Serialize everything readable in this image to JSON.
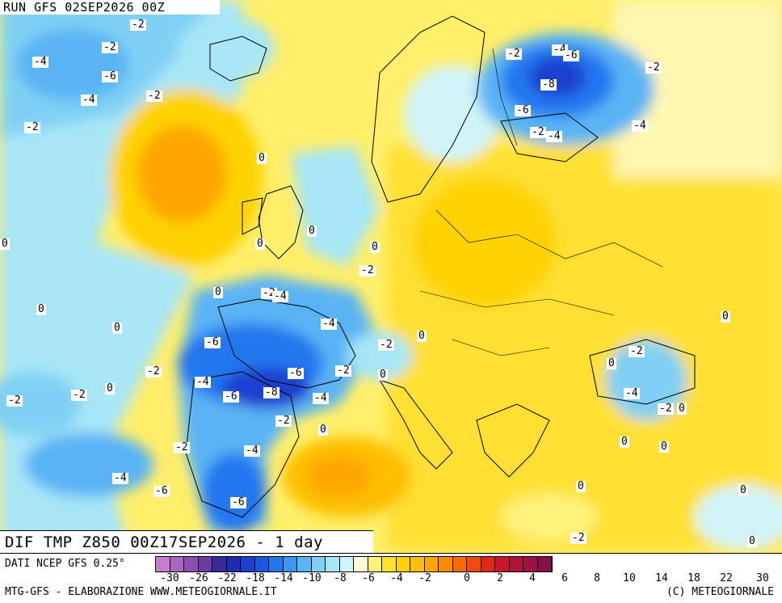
{
  "run_title": "RUN GFS 02SEP2026 00Z",
  "field_title": "DIF TMP Z850 00Z17SEP2026 - 1 day",
  "footer": {
    "source": "DATI NCEP GFS 0.25°",
    "credit_left": "MTG-GFS - ELABORAZIONE WWW.METEOGIORNALE.IT",
    "credit_right": "(C) METEOGIORNALE"
  },
  "legend": {
    "colors": [
      "#c87ed0",
      "#a866c0",
      "#8e4eb0",
      "#6c3aa0",
      "#3a2a98",
      "#1f2bb0",
      "#1c3fcf",
      "#1a5ae0",
      "#2277ef",
      "#3a96f2",
      "#5ab4f4",
      "#7fd0f4",
      "#a6e6f6",
      "#d0f4f8",
      "#fffbd0",
      "#fff27a",
      "#ffe42a",
      "#ffd200",
      "#ffbf00",
      "#ffa500",
      "#ff8c00",
      "#ff6a00",
      "#f24a10",
      "#dd2a1c",
      "#c81828",
      "#b01436",
      "#9c1242",
      "#86104e"
    ],
    "ticks": [
      "-30",
      "-26",
      "-22",
      "-18",
      "-14",
      "-10",
      "-8",
      "-6",
      "-4",
      "-2",
      "0",
      "2",
      "4",
      "6",
      "8",
      "10",
      "14",
      "18",
      "22",
      "30"
    ]
  },
  "map_labels": [
    {
      "text": "-2"
    },
    {
      "text": "-2"
    },
    {
      "text": "-4"
    },
    {
      "text": "-6"
    },
    {
      "text": "-4"
    },
    {
      "text": "-2"
    },
    {
      "text": "-2"
    },
    {
      "text": "-2"
    },
    {
      "text": "-4"
    },
    {
      "text": "-6"
    },
    {
      "text": "-2"
    },
    {
      "text": "-8"
    },
    {
      "text": "-6"
    },
    {
      "text": "-4"
    },
    {
      "text": "-2"
    },
    {
      "text": "-4"
    },
    {
      "text": "0"
    },
    {
      "text": "0"
    },
    {
      "text": "0"
    },
    {
      "text": "0"
    },
    {
      "text": "0"
    },
    {
      "text": "-2"
    },
    {
      "text": "0"
    },
    {
      "text": "-2"
    },
    {
      "text": "-4"
    },
    {
      "text": "0"
    },
    {
      "text": "0"
    },
    {
      "text": "-4"
    },
    {
      "text": "-6"
    },
    {
      "text": "-2"
    },
    {
      "text": "0"
    },
    {
      "text": "-2"
    },
    {
      "text": "-2"
    },
    {
      "text": "-4"
    },
    {
      "text": "-6"
    },
    {
      "text": "-6"
    },
    {
      "text": "-8"
    },
    {
      "text": "-2"
    },
    {
      "text": "-4"
    },
    {
      "text": "-2"
    },
    {
      "text": "0"
    },
    {
      "text": "0"
    },
    {
      "text": "-2"
    },
    {
      "text": "0"
    },
    {
      "text": "0"
    },
    {
      "text": "-2"
    },
    {
      "text": "-4"
    },
    {
      "text": "-2"
    },
    {
      "text": "0"
    },
    {
      "text": "0"
    },
    {
      "text": "-4"
    },
    {
      "text": "-4"
    },
    {
      "text": "-6"
    },
    {
      "text": "-6"
    },
    {
      "text": "-2"
    },
    {
      "text": "0"
    },
    {
      "text": "0"
    },
    {
      "text": "0"
    },
    {
      "text": "0"
    },
    {
      "text": "-2"
    },
    {
      "text": "0"
    }
  ]
}
